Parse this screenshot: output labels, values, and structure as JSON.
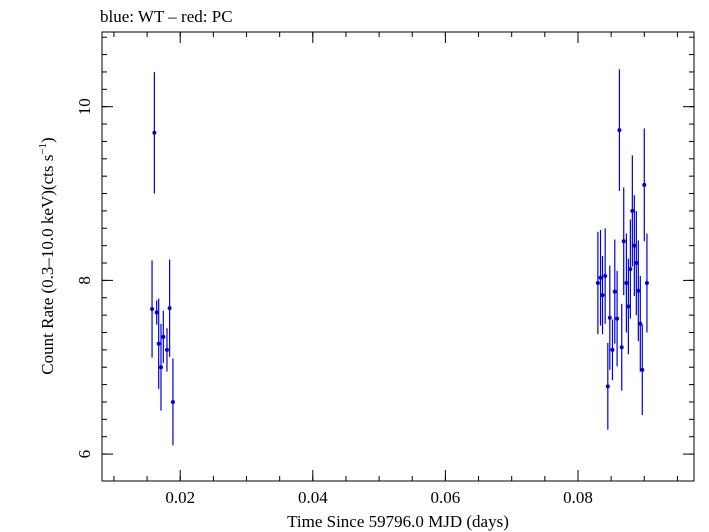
{
  "chart_data": {
    "type": "scatter",
    "title": "blue: WT – red: PC",
    "xlabel": "Time Since 59796.0 MJD (days)",
    "ylabel_main": "Count Rate (0.3–10.0 keV)(cts s",
    "ylabel_sup": "−1",
    "ylabel_close": ")",
    "xlim": [
      0.0082,
      0.0975
    ],
    "ylim": [
      5.69,
      10.86
    ],
    "x_ticks": [
      0.02,
      0.04,
      0.06,
      0.08
    ],
    "x_tick_labels": [
      "0.02",
      "0.04",
      "0.06",
      "0.08"
    ],
    "y_ticks": [
      6,
      8,
      10
    ],
    "y_tick_labels": [
      "6",
      "8",
      "10"
    ],
    "grid": false,
    "series": [
      {
        "name": "WT",
        "color": "#0000dd",
        "points": [
          {
            "x": 0.01575,
            "y": 7.67,
            "err": 0.56
          },
          {
            "x": 0.0161,
            "y": 9.7,
            "err": 0.7
          },
          {
            "x": 0.01645,
            "y": 7.63,
            "err": 0.14
          },
          {
            "x": 0.01675,
            "y": 7.27,
            "err": 0.52
          },
          {
            "x": 0.0171,
            "y": 7.0,
            "err": 0.5
          },
          {
            "x": 0.01745,
            "y": 7.35,
            "err": 0.3
          },
          {
            "x": 0.018,
            "y": 7.2,
            "err": 0.25
          },
          {
            "x": 0.0184,
            "y": 7.68,
            "err": 0.56
          },
          {
            "x": 0.0189,
            "y": 6.6,
            "err": 0.5
          },
          {
            "x": 0.083,
            "y": 7.97,
            "err": 0.59
          },
          {
            "x": 0.0834,
            "y": 8.03,
            "err": 0.55
          },
          {
            "x": 0.0837,
            "y": 7.83,
            "err": 0.45
          },
          {
            "x": 0.0841,
            "y": 8.05,
            "err": 0.55
          },
          {
            "x": 0.0845,
            "y": 6.78,
            "err": 0.5
          },
          {
            "x": 0.0848,
            "y": 7.57,
            "err": 0.6
          },
          {
            "x": 0.0852,
            "y": 7.2,
            "err": 0.35
          },
          {
            "x": 0.08555,
            "y": 7.87,
            "err": 0.6
          },
          {
            "x": 0.0859,
            "y": 7.56,
            "err": 0.55
          },
          {
            "x": 0.08625,
            "y": 9.73,
            "err": 0.7
          },
          {
            "x": 0.0866,
            "y": 7.23,
            "err": 0.5
          },
          {
            "x": 0.0869,
            "y": 8.45,
            "err": 0.62
          },
          {
            "x": 0.0873,
            "y": 7.97,
            "err": 0.57
          },
          {
            "x": 0.0876,
            "y": 7.7,
            "err": 0.55
          },
          {
            "x": 0.0879,
            "y": 8.13,
            "err": 0.57
          },
          {
            "x": 0.0882,
            "y": 8.8,
            "err": 0.64
          },
          {
            "x": 0.0885,
            "y": 8.4,
            "err": 0.58
          },
          {
            "x": 0.0888,
            "y": 8.2,
            "err": 0.6
          },
          {
            "x": 0.0891,
            "y": 7.88,
            "err": 0.58
          },
          {
            "x": 0.0894,
            "y": 7.5,
            "err": 0.55
          },
          {
            "x": 0.0897,
            "y": 6.97,
            "err": 0.52
          },
          {
            "x": 0.09,
            "y": 9.1,
            "err": 0.65
          },
          {
            "x": 0.0904,
            "y": 7.97,
            "err": 0.57
          }
        ]
      }
    ]
  }
}
